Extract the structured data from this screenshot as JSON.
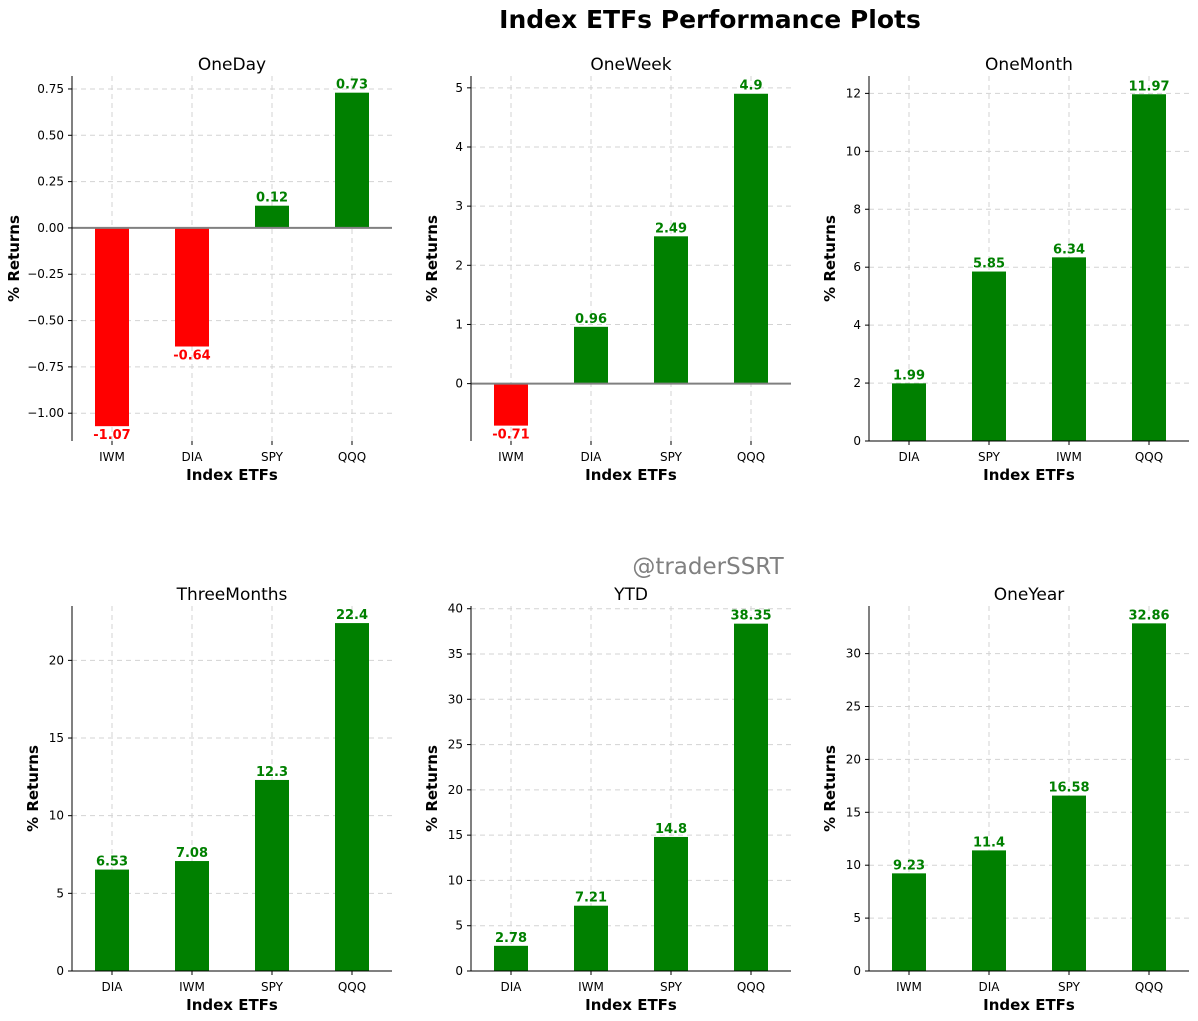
{
  "figure": {
    "title": "Index ETFs Performance Plots",
    "watermark": "@traderSSRT"
  },
  "colors": {
    "positive": "#008000",
    "negative": "#ff0000",
    "zero_line": "#808080",
    "grid": "#d3d3d3"
  },
  "chart_data": [
    {
      "type": "bar",
      "title": "OneDay",
      "categories": [
        "IWM",
        "DIA",
        "SPY",
        "QQQ"
      ],
      "values": [
        -1.07,
        -0.64,
        0.12,
        0.73
      ],
      "xlabel": "Index ETFs",
      "ylabel": "% Returns",
      "ylim": [
        -1.15,
        0.82
      ],
      "yticks": [
        -1.0,
        -0.75,
        -0.5,
        -0.25,
        0.0,
        0.25,
        0.5,
        0.75
      ],
      "ytick_labels": [
        "−1.00",
        "−0.75",
        "−0.50",
        "−0.25",
        "0.00",
        "0.25",
        "0.50",
        "0.75"
      ],
      "grid": true
    },
    {
      "type": "bar",
      "title": "OneWeek",
      "categories": [
        "IWM",
        "DIA",
        "SPY",
        "QQQ"
      ],
      "values": [
        -0.71,
        0.96,
        2.49,
        4.9
      ],
      "xlabel": "Index ETFs",
      "ylabel": "% Returns",
      "ylim": [
        -0.97,
        5.2
      ],
      "yticks": [
        0,
        1,
        2,
        3,
        4,
        5
      ],
      "ytick_labels": [
        "0",
        "1",
        "2",
        "3",
        "4",
        "5"
      ],
      "grid": true
    },
    {
      "type": "bar",
      "title": "OneMonth",
      "categories": [
        "DIA",
        "SPY",
        "IWM",
        "QQQ"
      ],
      "values": [
        1.99,
        5.85,
        6.34,
        11.97
      ],
      "xlabel": "Index ETFs",
      "ylabel": "% Returns",
      "ylim": [
        0,
        12.6
      ],
      "yticks": [
        0,
        2,
        4,
        6,
        8,
        10,
        12
      ],
      "ytick_labels": [
        "0",
        "2",
        "4",
        "6",
        "8",
        "10",
        "12"
      ],
      "grid": true
    },
    {
      "type": "bar",
      "title": "ThreeMonths",
      "categories": [
        "DIA",
        "IWM",
        "SPY",
        "QQQ"
      ],
      "values": [
        6.53,
        7.08,
        12.3,
        22.4
      ],
      "xlabel": "Index ETFs",
      "ylabel": "% Returns",
      "ylim": [
        0,
        23.5
      ],
      "yticks": [
        0,
        5,
        10,
        15,
        20
      ],
      "ytick_labels": [
        "0",
        "5",
        "10",
        "15",
        "20"
      ],
      "grid": true
    },
    {
      "type": "bar",
      "title": "YTD",
      "categories": [
        "DIA",
        "IWM",
        "SPY",
        "QQQ"
      ],
      "values": [
        2.78,
        7.21,
        14.8,
        38.35
      ],
      "xlabel": "Index ETFs",
      "ylabel": "% Returns",
      "ylim": [
        0,
        40.3
      ],
      "yticks": [
        0,
        5,
        10,
        15,
        20,
        25,
        30,
        35,
        40
      ],
      "ytick_labels": [
        "0",
        "5",
        "10",
        "15",
        "20",
        "25",
        "30",
        "35",
        "40"
      ],
      "grid": true
    },
    {
      "type": "bar",
      "title": "OneYear",
      "categories": [
        "IWM",
        "DIA",
        "SPY",
        "QQQ"
      ],
      "values": [
        9.23,
        11.4,
        16.58,
        32.86
      ],
      "xlabel": "Index ETFs",
      "ylabel": "% Returns",
      "ylim": [
        0,
        34.5
      ],
      "yticks": [
        0,
        5,
        10,
        15,
        20,
        25,
        30
      ],
      "ytick_labels": [
        "0",
        "5",
        "10",
        "15",
        "20",
        "25",
        "30"
      ],
      "grid": true
    }
  ]
}
